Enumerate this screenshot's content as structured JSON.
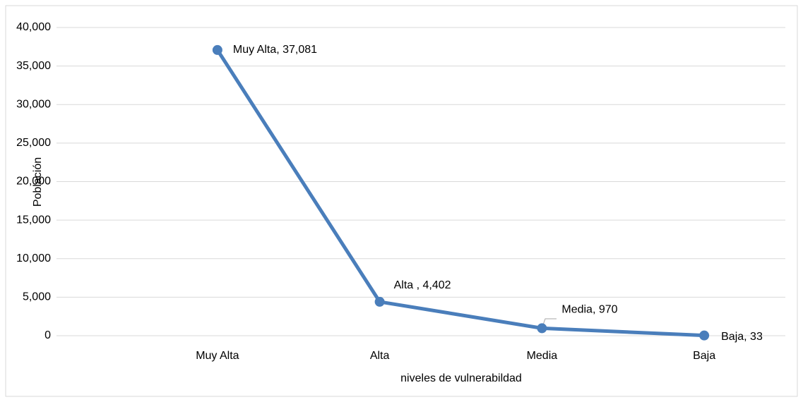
{
  "chart_data": {
    "type": "line",
    "categories": [
      "Muy Alta",
      "Alta",
      "Media",
      "Baja"
    ],
    "series": [
      {
        "name": "Población",
        "color": "#4a7ebb",
        "values": [
          37081,
          4402,
          970,
          33
        ],
        "value_labels": [
          "Muy Alta, 37,081",
          "Alta , 4,402",
          "Media, 970",
          "Baja, 33"
        ]
      }
    ],
    "x_label": "niveles de vulnerabildad",
    "y_label": "Población",
    "ylim": [
      0,
      40000
    ],
    "yticks": [
      0,
      {
        "value": 5000,
        "label": "5,000"
      },
      {
        "value": 10000,
        "label": "10,000"
      },
      {
        "value": 15000,
        "label": "15,000"
      },
      {
        "value": 20000,
        "label": "20,000"
      },
      {
        "value": 25000,
        "label": "25,000"
      },
      {
        "value": 30000,
        "label": "30,000"
      },
      {
        "value": 35000,
        "label": "35,000"
      },
      {
        "value": 40000,
        "label": "40,000"
      }
    ],
    "grid": true
  }
}
